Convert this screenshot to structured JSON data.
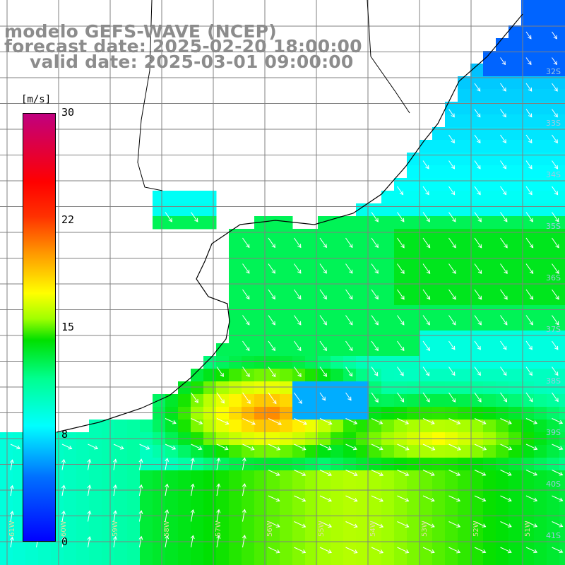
{
  "header": {
    "line1": "modelo GEFS-WAVE (NCEP)",
    "line2": "forecast date: 2025-02-20 18:00:00",
    "line3": "valid date: 2025-03-01 09:00:00"
  },
  "colorbar": {
    "unit": "[m/s]",
    "ticks": [
      "30",
      "22",
      "15",
      "8",
      "0"
    ],
    "tick_values": [
      30,
      22,
      15,
      8,
      0
    ],
    "range": [
      0,
      30
    ],
    "colors": [
      "#0000ff",
      "#00a0ff",
      "#00ffff",
      "#00ff80",
      "#00e000",
      "#80ff00",
      "#ffff00",
      "#ffa000",
      "#ff4000",
      "#ff0000",
      "#c00080"
    ]
  },
  "map": {
    "lat_labels": [
      "32S",
      "33S",
      "34S",
      "35S",
      "36S",
      "37S",
      "38S",
      "39S",
      "40S",
      "41S"
    ],
    "lon_labels": [
      "61W",
      "60W",
      "59W",
      "58W",
      "57W",
      "56W",
      "55W",
      "54W",
      "53W",
      "52W",
      "51W"
    ],
    "land_color": "#ffffff",
    "grid_color": "#808080",
    "coast_color": "#000000",
    "vector_color": "#ffffff"
  }
}
